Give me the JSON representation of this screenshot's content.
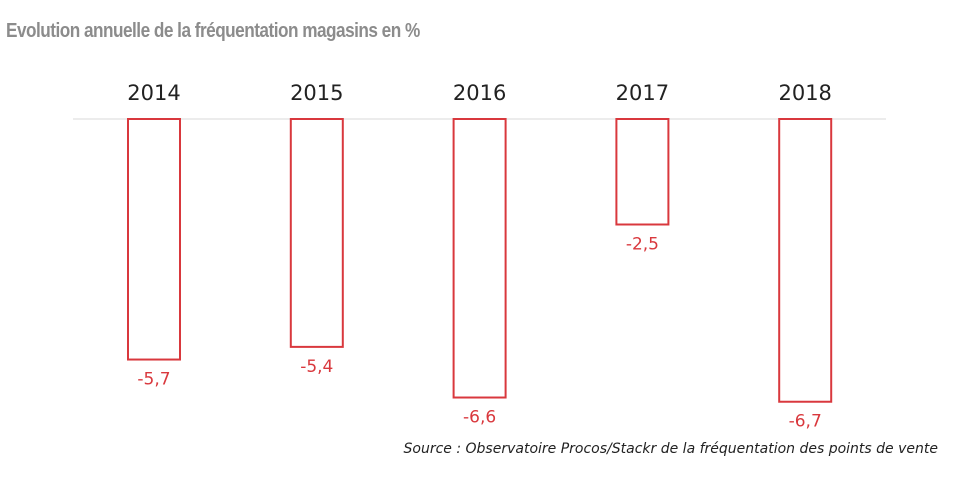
{
  "chart_data": {
    "type": "bar",
    "title": "Evolution annuelle de la fréquentation magasins en %",
    "categories": [
      "2014",
      "2015",
      "2016",
      "2017",
      "2018"
    ],
    "values": [
      -5.7,
      -5.4,
      -6.6,
      -2.5,
      -6.7
    ],
    "value_labels": [
      "-5,7",
      "-5,4",
      "-6,6",
      "-2,5",
      "-6,7"
    ],
    "xlabel": "",
    "ylabel": "",
    "ylim": [
      -7,
      0
    ],
    "x_axis_position": "top",
    "grid": false,
    "legend": "none"
  },
  "colors": {
    "title": "#8c8c8c",
    "bar_stroke": "#d9383d",
    "bar_fill": "#ffffff",
    "value_label": "#d9383d",
    "category_label": "#222222",
    "baseline": "#d9d9d9"
  },
  "source": "Source : Observatoire Procos/Stackr de la fréquentation des points de vente"
}
